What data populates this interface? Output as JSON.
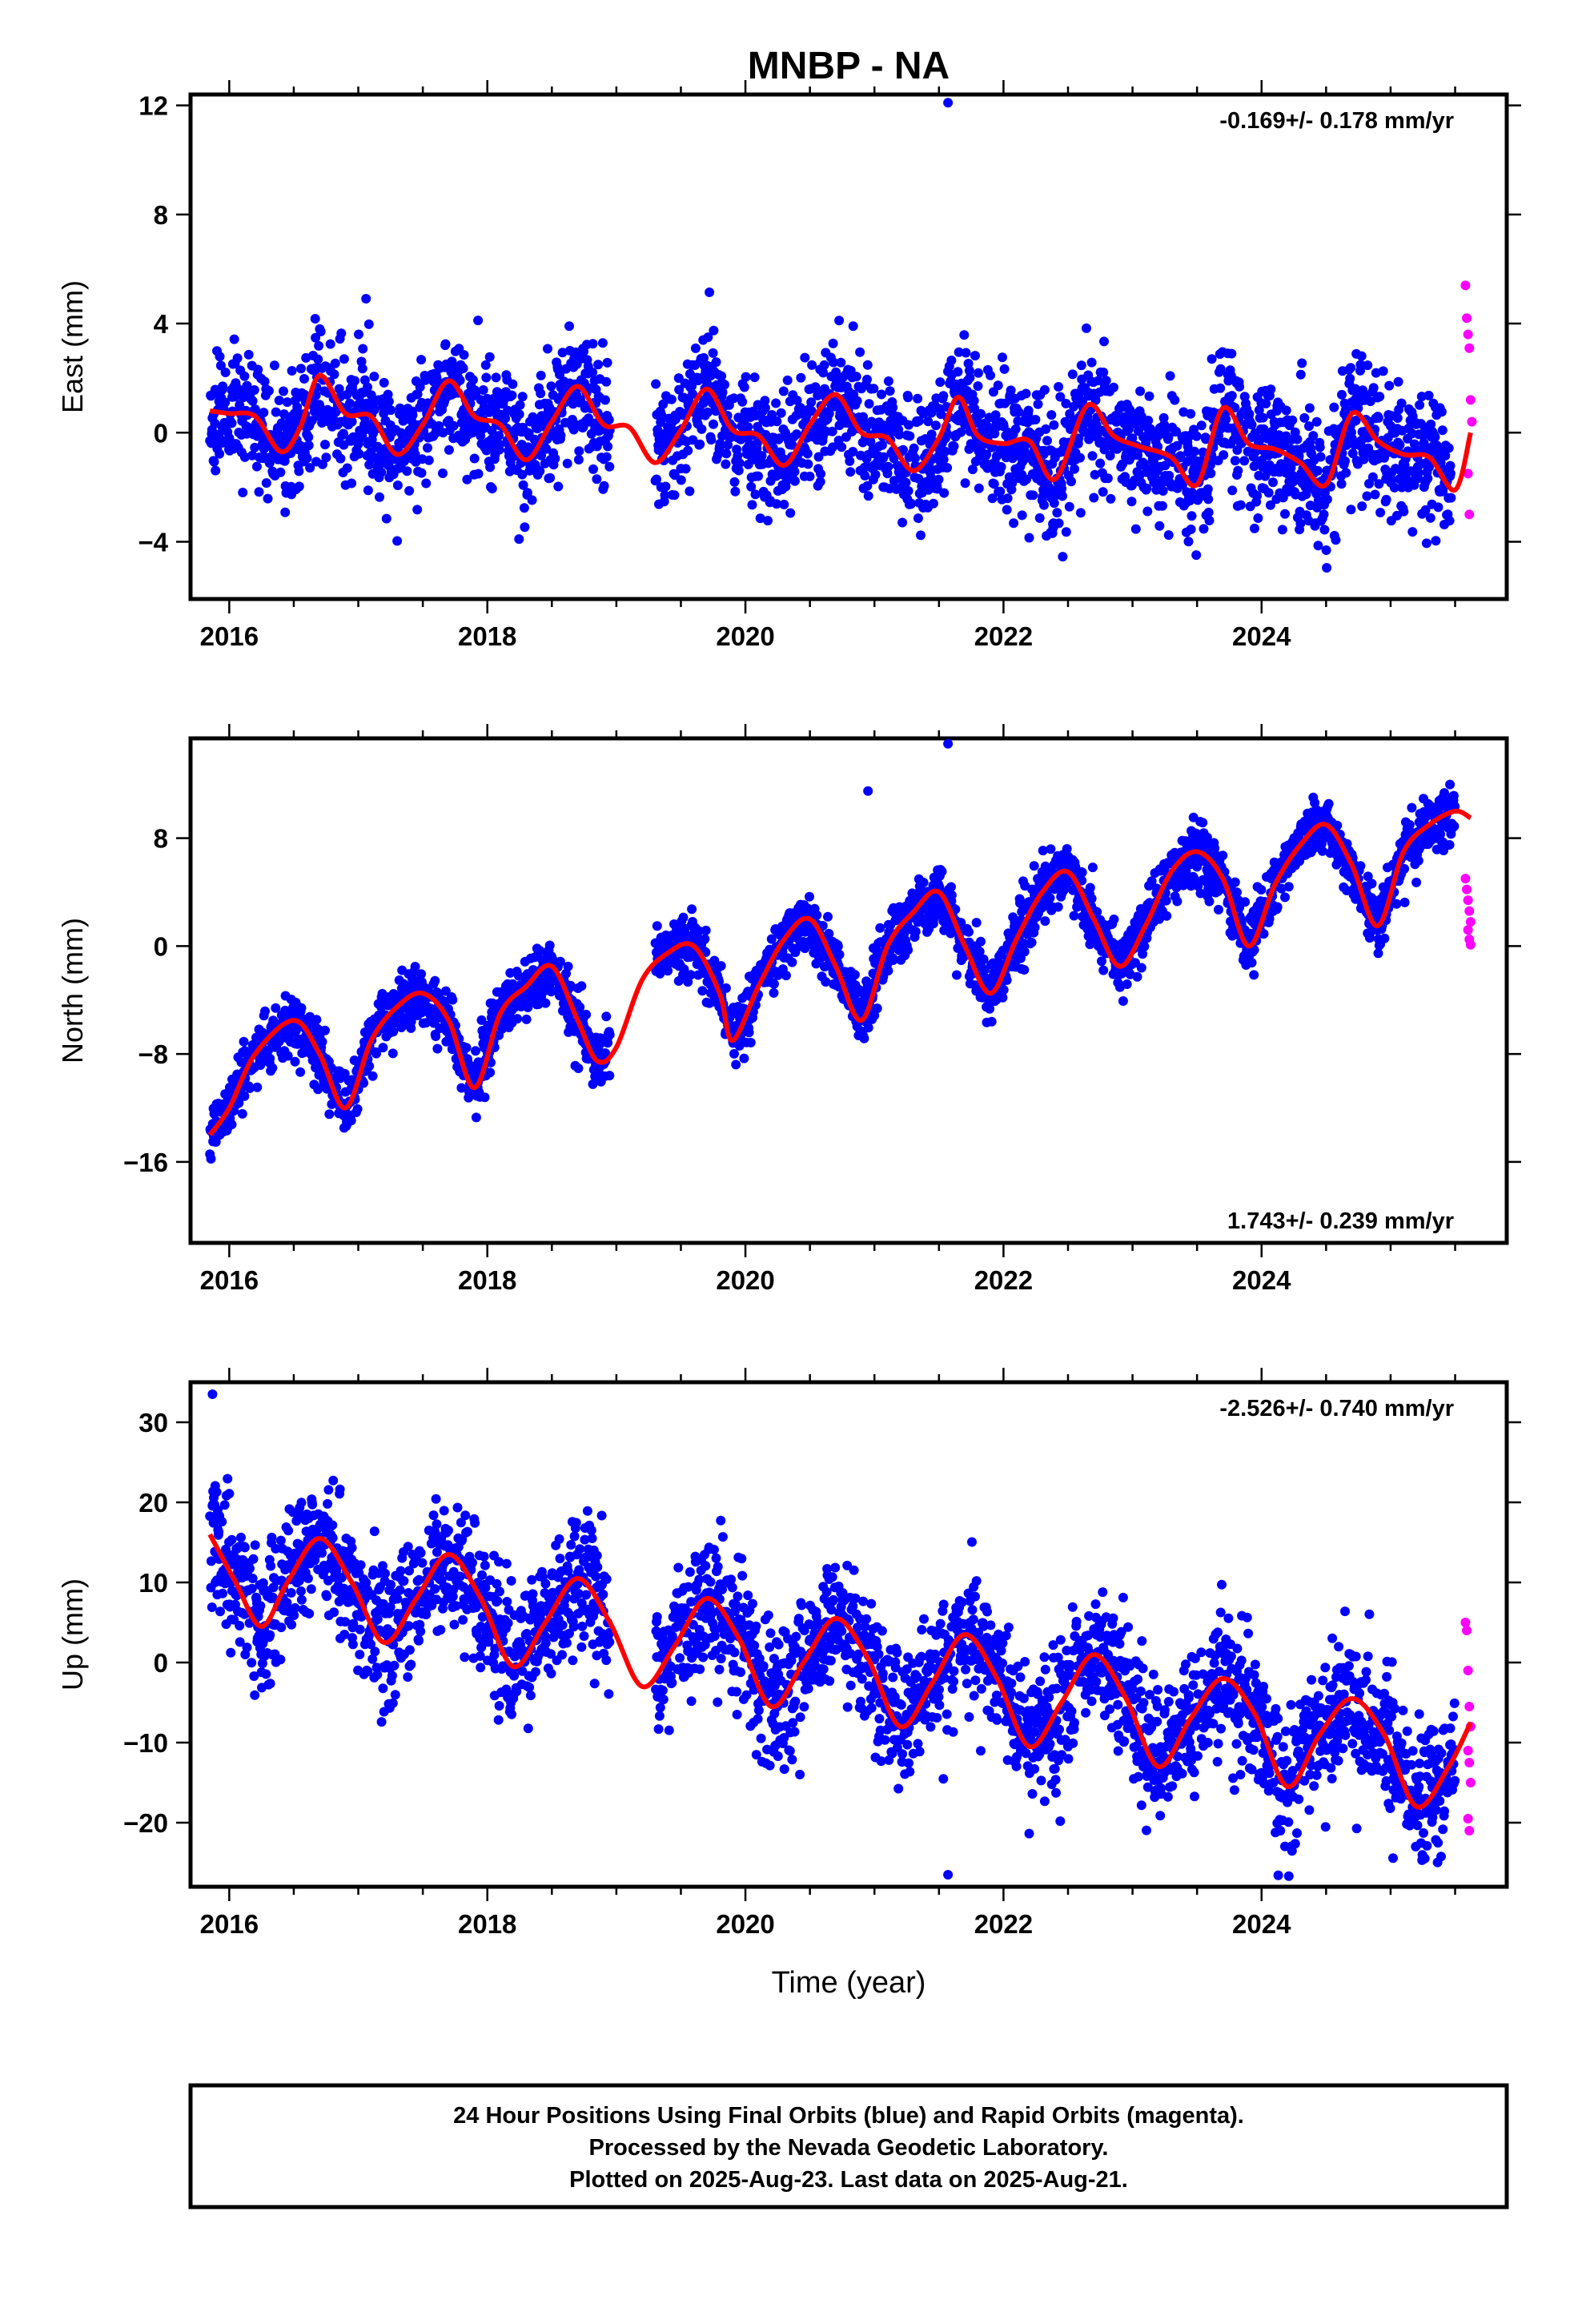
{
  "title": "MNBP - NA",
  "colors": {
    "final": "#0000ff",
    "rapid": "#ff00ff",
    "model": "#ff0000",
    "axes": "#000000"
  },
  "xaxis": {
    "label": "Time (year)",
    "range": [
      2015.7,
      2025.9
    ],
    "ticks": [
      2016,
      2018,
      2020,
      2022,
      2024
    ],
    "tick_labels": [
      "2016",
      "2018",
      "2020",
      "2022",
      "2024"
    ],
    "minor_step": 0.5
  },
  "footer": {
    "line1": "24 Hour Positions Using Final Orbits (blue) and Rapid Orbits (magenta).",
    "line2": "Processed by the Nevada Geodetic Laboratory.",
    "line3": "Plotted on 2025-Aug-23. Last data on 2025-Aug-21."
  },
  "chart_data": [
    {
      "type": "scatter",
      "ylabel": "East (mm)",
      "rate": "-0.169+/- 0.178 mm/yr",
      "rate_position": "top-right",
      "ylim": [
        -6.1,
        12.4
      ],
      "yticks": [
        -4,
        0,
        4,
        8,
        12
      ],
      "ytick_labels": [
        "−4",
        "0",
        "4",
        "8",
        "12"
      ],
      "model": {
        "x": [
          2015.85,
          2016.0,
          2016.2,
          2016.4,
          2016.55,
          2016.7,
          2016.9,
          2017.1,
          2017.3,
          2017.5,
          2017.7,
          2017.9,
          2018.1,
          2018.3,
          2018.5,
          2018.7,
          2018.9,
          2019.1,
          2019.3,
          2019.5,
          2019.7,
          2019.9,
          2020.1,
          2020.3,
          2020.5,
          2020.7,
          2020.9,
          2021.1,
          2021.3,
          2021.5,
          2021.65,
          2021.8,
          2022.0,
          2022.2,
          2022.4,
          2022.65,
          2022.85,
          2023.05,
          2023.3,
          2023.5,
          2023.7,
          2023.9,
          2024.1,
          2024.3,
          2024.5,
          2024.7,
          2024.9,
          2025.1,
          2025.3,
          2025.5,
          2025.62
        ],
        "y": [
          0.8,
          0.7,
          0.6,
          -0.7,
          0.2,
          2.1,
          0.7,
          0.6,
          -0.8,
          0.3,
          1.9,
          0.6,
          0.3,
          -1.0,
          0.4,
          1.7,
          0.3,
          0.2,
          -1.1,
          0.1,
          1.6,
          0.1,
          -0.1,
          -1.2,
          0.3,
          1.4,
          0.0,
          -0.2,
          -1.4,
          -0.2,
          1.3,
          -0.1,
          -0.4,
          -0.3,
          -1.7,
          1.0,
          -0.1,
          -0.5,
          -0.9,
          -1.9,
          0.9,
          -0.4,
          -0.6,
          -1.1,
          -1.9,
          0.7,
          -0.3,
          -0.8,
          -0.9,
          -2.1,
          0.0
        ]
      },
      "final_series": {
        "start": 2015.85,
        "end": 2025.47,
        "seed": 11,
        "trend": -0.169,
        "offset": 0.7,
        "seasonal_amp": 1.2,
        "seasonal_phase": 0.55,
        "noise": 1.15,
        "gap": [
          2018.95,
          2019.3
        ]
      },
      "rapid_series": {
        "x": [
          2025.58,
          2025.59,
          2025.6,
          2025.61,
          2025.62,
          2025.63,
          2025.6,
          2025.61
        ],
        "y": [
          5.4,
          4.2,
          3.6,
          3.1,
          1.2,
          0.4,
          -1.5,
          -3.0
        ]
      },
      "outliers": {
        "x": [
          2021.57
        ],
        "y": [
          12.1
        ]
      }
    },
    {
      "type": "scatter",
      "ylabel": "North (mm)",
      "rate": "1.743+/- 0.239 mm/yr",
      "rate_position": "bottom-right",
      "ylim": [
        -22,
        15.4
      ],
      "yticks": [
        -16,
        -8,
        0,
        8
      ],
      "ytick_labels": [
        "−16",
        "−8",
        "0",
        "8"
      ],
      "model": {
        "x": [
          2015.85,
          2016.0,
          2016.2,
          2016.5,
          2016.7,
          2016.9,
          2017.1,
          2017.3,
          2017.5,
          2017.7,
          2017.9,
          2018.1,
          2018.3,
          2018.5,
          2018.7,
          2018.85,
          2019.0,
          2019.2,
          2019.4,
          2019.6,
          2019.8,
          2019.9,
          2020.1,
          2020.3,
          2020.5,
          2020.7,
          2020.9,
          2021.1,
          2021.3,
          2021.5,
          2021.7,
          2021.9,
          2022.1,
          2022.3,
          2022.5,
          2022.7,
          2022.9,
          2023.1,
          2023.3,
          2023.5,
          2023.7,
          2023.9,
          2024.1,
          2024.3,
          2024.5,
          2024.7,
          2024.9,
          2025.1,
          2025.3,
          2025.5,
          2025.62
        ],
        "y": [
          -14.0,
          -12.0,
          -8.0,
          -5.5,
          -8.0,
          -12.0,
          -7.0,
          -4.5,
          -3.5,
          -5.5,
          -10.5,
          -5.0,
          -3.0,
          -1.5,
          -5.5,
          -8.5,
          -7.5,
          -2.5,
          -0.5,
          0.0,
          -3.5,
          -7.0,
          -3.0,
          0.5,
          2.0,
          -1.5,
          -5.5,
          0.0,
          2.5,
          4.0,
          0.0,
          -3.5,
          0.5,
          4.0,
          5.5,
          2.0,
          -1.5,
          1.5,
          5.5,
          7.0,
          5.0,
          0.0,
          4.5,
          7.5,
          9.0,
          6.0,
          1.5,
          7.0,
          9.0,
          10.0,
          9.5
        ]
      },
      "final_series": {
        "start": 2015.85,
        "end": 2025.5,
        "seed": 23,
        "trend": 1.743,
        "offset": -16.5,
        "seasonal_amp": 3.5,
        "seasonal_phase": 0.3,
        "noise": 1.1,
        "gap": [
          2018.95,
          2019.3
        ]
      },
      "rapid_series": {
        "x": [
          2025.58,
          2025.59,
          2025.6,
          2025.61,
          2025.62,
          2025.6,
          2025.61,
          2025.62
        ],
        "y": [
          5.0,
          4.2,
          3.4,
          2.6,
          1.8,
          1.2,
          0.5,
          0.1
        ]
      },
      "outliers": {
        "x": [
          2021.57,
          2020.95
        ],
        "y": [
          15.0,
          11.5
        ]
      }
    },
    {
      "type": "scatter",
      "ylabel": "Up (mm)",
      "rate": "-2.526+/- 0.740 mm/yr",
      "rate_position": "top-right",
      "ylim": [
        -28,
        35
      ],
      "yticks": [
        -20,
        -10,
        0,
        10,
        20,
        30
      ],
      "ytick_labels": [
        "−20",
        "−10",
        "0",
        "10",
        "20",
        "30"
      ],
      "model": {
        "x": [
          2015.85,
          2016.05,
          2016.25,
          2016.45,
          2016.7,
          2016.95,
          2017.2,
          2017.45,
          2017.7,
          2017.95,
          2018.2,
          2018.45,
          2018.7,
          2018.95,
          2019.2,
          2019.45,
          2019.7,
          2019.95,
          2020.2,
          2020.45,
          2020.7,
          2020.95,
          2021.2,
          2021.45,
          2021.7,
          2021.95,
          2022.2,
          2022.45,
          2022.7,
          2022.95,
          2023.2,
          2023.45,
          2023.7,
          2023.95,
          2024.2,
          2024.45,
          2024.7,
          2024.95,
          2025.2,
          2025.45,
          2025.62
        ],
        "y": [
          16.0,
          10.0,
          4.5,
          10.0,
          15.5,
          10.0,
          2.5,
          8.0,
          13.5,
          8.0,
          -0.5,
          5.0,
          10.5,
          5.0,
          -3.0,
          2.0,
          8.0,
          3.0,
          -5.5,
          0.0,
          5.5,
          0.5,
          -8.0,
          -2.5,
          3.5,
          -2.0,
          -10.5,
          -5.0,
          1.0,
          -4.5,
          -13.0,
          -7.0,
          -2.0,
          -6.5,
          -15.5,
          -9.0,
          -4.5,
          -9.0,
          -18.0,
          -13.0,
          -7.5
        ]
      },
      "final_series": {
        "start": 2015.85,
        "end": 2025.5,
        "seed": 37,
        "trend": -2.526,
        "offset": 14.0,
        "seasonal_amp": 6.0,
        "seasonal_phase": 0.7,
        "noise": 4.2,
        "gap": [
          2018.95,
          2019.3
        ]
      },
      "rapid_series": {
        "x": [
          2025.58,
          2025.59,
          2025.6,
          2025.61,
          2025.62,
          2025.6,
          2025.61,
          2025.62,
          2025.6,
          2025.61
        ],
        "y": [
          5.0,
          4.0,
          -1.0,
          -5.5,
          -8.0,
          -11.0,
          -12.5,
          -15.0,
          -19.5,
          -21.0
        ]
      },
      "outliers": {
        "x": [
          2015.87,
          2021.57
        ],
        "y": [
          33.5,
          -26.5
        ]
      }
    }
  ]
}
